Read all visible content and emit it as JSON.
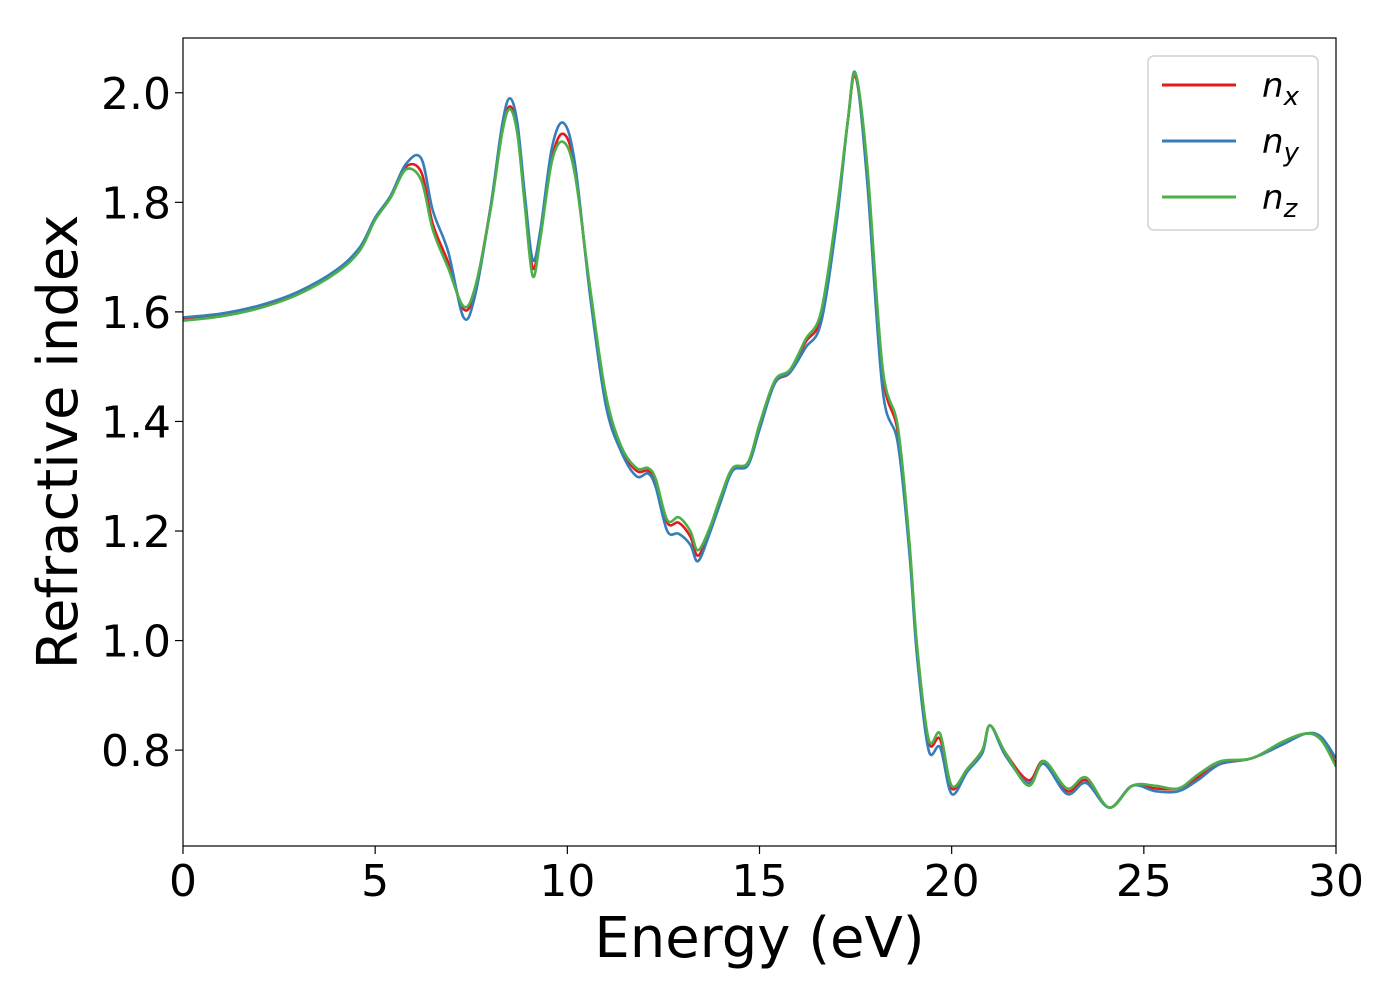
{
  "chart_data": {
    "type": "line",
    "title": "",
    "xlabel": "Energy (eV)",
    "ylabel": "Refractive index",
    "xlim": [
      0,
      30
    ],
    "ylim": [
      0.625,
      2.1
    ],
    "xticks": [
      0,
      5,
      10,
      15,
      20,
      25,
      30
    ],
    "xtick_labels": [
      "0",
      "5",
      "10",
      "15",
      "20",
      "25",
      "30"
    ],
    "yticks": [
      0.8,
      1.0,
      1.2,
      1.4,
      1.6,
      1.8,
      2.0
    ],
    "ytick_labels": [
      "0.8",
      "1.0",
      "1.2",
      "1.4",
      "1.6",
      "1.8",
      "2.0"
    ],
    "grid": false,
    "legend_position": "top-right",
    "series": [
      {
        "name": "n_x",
        "label_main": "n",
        "label_sub": "x",
        "color": "#e41a1c",
        "points": [
          [
            0,
            1.587
          ],
          [
            1,
            1.595
          ],
          [
            2,
            1.61
          ],
          [
            3,
            1.635
          ],
          [
            4,
            1.675
          ],
          [
            4.6,
            1.715
          ],
          [
            5,
            1.77
          ],
          [
            5.4,
            1.81
          ],
          [
            5.8,
            1.865
          ],
          [
            6.2,
            1.855
          ],
          [
            6.5,
            1.76
          ],
          [
            6.9,
            1.69
          ],
          [
            7.3,
            1.605
          ],
          [
            7.6,
            1.64
          ],
          [
            8.0,
            1.79
          ],
          [
            8.3,
            1.93
          ],
          [
            8.5,
            1.975
          ],
          [
            8.7,
            1.935
          ],
          [
            8.9,
            1.8
          ],
          [
            9.1,
            1.68
          ],
          [
            9.3,
            1.74
          ],
          [
            9.6,
            1.88
          ],
          [
            9.9,
            1.925
          ],
          [
            10.2,
            1.86
          ],
          [
            10.6,
            1.63
          ],
          [
            11.0,
            1.44
          ],
          [
            11.4,
            1.35
          ],
          [
            11.8,
            1.31
          ],
          [
            12.1,
            1.31
          ],
          [
            12.3,
            1.29
          ],
          [
            12.6,
            1.215
          ],
          [
            12.9,
            1.215
          ],
          [
            13.2,
            1.19
          ],
          [
            13.4,
            1.155
          ],
          [
            13.7,
            1.2
          ],
          [
            14.0,
            1.26
          ],
          [
            14.3,
            1.31
          ],
          [
            14.7,
            1.325
          ],
          [
            15.0,
            1.39
          ],
          [
            15.4,
            1.47
          ],
          [
            15.8,
            1.49
          ],
          [
            16.2,
            1.545
          ],
          [
            16.6,
            1.59
          ],
          [
            17.0,
            1.77
          ],
          [
            17.3,
            1.95
          ],
          [
            17.5,
            2.03
          ],
          [
            17.8,
            1.86
          ],
          [
            18.2,
            1.49
          ],
          [
            18.6,
            1.38
          ],
          [
            18.9,
            1.17
          ],
          [
            19.1,
            0.98
          ],
          [
            19.4,
            0.815
          ],
          [
            19.7,
            0.82
          ],
          [
            20.0,
            0.73
          ],
          [
            20.4,
            0.765
          ],
          [
            20.8,
            0.8
          ],
          [
            21.0,
            0.845
          ],
          [
            21.4,
            0.795
          ],
          [
            22.0,
            0.745
          ],
          [
            22.4,
            0.78
          ],
          [
            23.0,
            0.725
          ],
          [
            23.5,
            0.745
          ],
          [
            24.1,
            0.695
          ],
          [
            24.7,
            0.735
          ],
          [
            25.3,
            0.73
          ],
          [
            25.9,
            0.73
          ],
          [
            26.4,
            0.75
          ],
          [
            27.0,
            0.775
          ],
          [
            27.8,
            0.785
          ],
          [
            28.6,
            0.81
          ],
          [
            29.2,
            0.83
          ],
          [
            29.6,
            0.82
          ],
          [
            30.0,
            0.775
          ]
        ]
      },
      {
        "name": "n_y",
        "label_main": "n",
        "label_sub": "y",
        "color": "#377eb8",
        "points": [
          [
            0,
            1.59
          ],
          [
            1,
            1.597
          ],
          [
            2,
            1.612
          ],
          [
            3,
            1.637
          ],
          [
            4,
            1.677
          ],
          [
            4.6,
            1.718
          ],
          [
            5,
            1.772
          ],
          [
            5.4,
            1.812
          ],
          [
            5.8,
            1.87
          ],
          [
            6.2,
            1.88
          ],
          [
            6.5,
            1.785
          ],
          [
            6.9,
            1.71
          ],
          [
            7.3,
            1.59
          ],
          [
            7.6,
            1.63
          ],
          [
            8.0,
            1.79
          ],
          [
            8.3,
            1.94
          ],
          [
            8.5,
            1.99
          ],
          [
            8.7,
            1.945
          ],
          [
            8.9,
            1.81
          ],
          [
            9.1,
            1.695
          ],
          [
            9.3,
            1.75
          ],
          [
            9.6,
            1.9
          ],
          [
            9.9,
            1.945
          ],
          [
            10.2,
            1.87
          ],
          [
            10.6,
            1.625
          ],
          [
            11.0,
            1.43
          ],
          [
            11.4,
            1.345
          ],
          [
            11.8,
            1.3
          ],
          [
            12.1,
            1.305
          ],
          [
            12.3,
            1.28
          ],
          [
            12.6,
            1.2
          ],
          [
            12.9,
            1.195
          ],
          [
            13.2,
            1.175
          ],
          [
            13.4,
            1.145
          ],
          [
            13.7,
            1.195
          ],
          [
            14.0,
            1.255
          ],
          [
            14.3,
            1.31
          ],
          [
            14.7,
            1.32
          ],
          [
            15.0,
            1.385
          ],
          [
            15.4,
            1.47
          ],
          [
            15.8,
            1.49
          ],
          [
            16.2,
            1.535
          ],
          [
            16.6,
            1.58
          ],
          [
            17.0,
            1.76
          ],
          [
            17.3,
            1.95
          ],
          [
            17.5,
            2.035
          ],
          [
            17.8,
            1.84
          ],
          [
            18.2,
            1.46
          ],
          [
            18.6,
            1.36
          ],
          [
            18.9,
            1.16
          ],
          [
            19.1,
            0.97
          ],
          [
            19.4,
            0.8
          ],
          [
            19.7,
            0.805
          ],
          [
            20.0,
            0.72
          ],
          [
            20.4,
            0.76
          ],
          [
            20.8,
            0.795
          ],
          [
            21.0,
            0.845
          ],
          [
            21.4,
            0.79
          ],
          [
            22.0,
            0.74
          ],
          [
            22.4,
            0.775
          ],
          [
            23.0,
            0.72
          ],
          [
            23.5,
            0.74
          ],
          [
            24.1,
            0.695
          ],
          [
            24.7,
            0.735
          ],
          [
            25.3,
            0.725
          ],
          [
            25.9,
            0.725
          ],
          [
            26.4,
            0.745
          ],
          [
            27.0,
            0.775
          ],
          [
            27.8,
            0.785
          ],
          [
            28.6,
            0.81
          ],
          [
            29.2,
            0.83
          ],
          [
            29.6,
            0.825
          ],
          [
            30.0,
            0.785
          ]
        ]
      },
      {
        "name": "n_z",
        "label_main": "n",
        "label_sub": "z",
        "color": "#4daf4a",
        "points": [
          [
            0,
            1.584
          ],
          [
            1,
            1.592
          ],
          [
            2,
            1.607
          ],
          [
            3,
            1.632
          ],
          [
            4,
            1.672
          ],
          [
            4.6,
            1.712
          ],
          [
            5,
            1.768
          ],
          [
            5.4,
            1.808
          ],
          [
            5.8,
            1.86
          ],
          [
            6.2,
            1.84
          ],
          [
            6.5,
            1.75
          ],
          [
            6.9,
            1.68
          ],
          [
            7.3,
            1.61
          ],
          [
            7.6,
            1.645
          ],
          [
            8.0,
            1.785
          ],
          [
            8.3,
            1.925
          ],
          [
            8.5,
            1.97
          ],
          [
            8.7,
            1.925
          ],
          [
            8.9,
            1.79
          ],
          [
            9.1,
            1.665
          ],
          [
            9.3,
            1.735
          ],
          [
            9.6,
            1.875
          ],
          [
            9.9,
            1.91
          ],
          [
            10.2,
            1.85
          ],
          [
            10.6,
            1.64
          ],
          [
            11.0,
            1.45
          ],
          [
            11.4,
            1.355
          ],
          [
            11.8,
            1.315
          ],
          [
            12.1,
            1.315
          ],
          [
            12.3,
            1.295
          ],
          [
            12.6,
            1.22
          ],
          [
            12.9,
            1.225
          ],
          [
            13.2,
            1.2
          ],
          [
            13.4,
            1.165
          ],
          [
            13.7,
            1.205
          ],
          [
            14.0,
            1.265
          ],
          [
            14.3,
            1.315
          ],
          [
            14.7,
            1.325
          ],
          [
            15.0,
            1.395
          ],
          [
            15.4,
            1.475
          ],
          [
            15.8,
            1.495
          ],
          [
            16.2,
            1.55
          ],
          [
            16.6,
            1.6
          ],
          [
            17.0,
            1.78
          ],
          [
            17.3,
            1.95
          ],
          [
            17.5,
            2.035
          ],
          [
            17.8,
            1.87
          ],
          [
            18.2,
            1.5
          ],
          [
            18.6,
            1.39
          ],
          [
            18.9,
            1.18
          ],
          [
            19.1,
            0.99
          ],
          [
            19.4,
            0.82
          ],
          [
            19.7,
            0.83
          ],
          [
            20.0,
            0.735
          ],
          [
            20.4,
            0.765
          ],
          [
            20.8,
            0.8
          ],
          [
            21.0,
            0.845
          ],
          [
            21.4,
            0.795
          ],
          [
            22.0,
            0.735
          ],
          [
            22.4,
            0.78
          ],
          [
            23.0,
            0.73
          ],
          [
            23.5,
            0.75
          ],
          [
            24.1,
            0.695
          ],
          [
            24.7,
            0.735
          ],
          [
            25.3,
            0.735
          ],
          [
            25.9,
            0.73
          ],
          [
            26.4,
            0.755
          ],
          [
            27.0,
            0.78
          ],
          [
            27.8,
            0.785
          ],
          [
            28.6,
            0.815
          ],
          [
            29.2,
            0.83
          ],
          [
            29.6,
            0.82
          ],
          [
            30.0,
            0.77
          ]
        ]
      }
    ]
  }
}
